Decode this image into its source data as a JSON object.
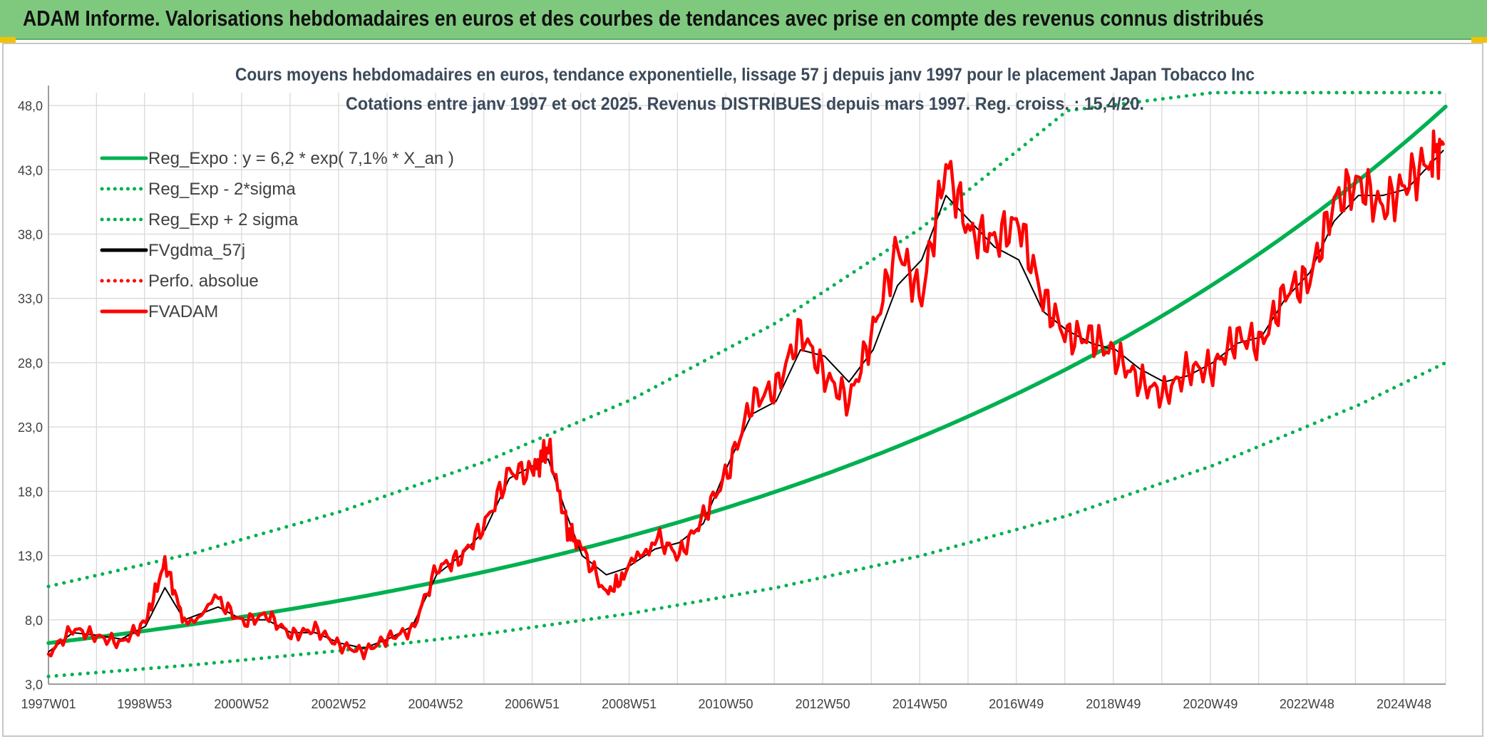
{
  "header": {
    "title": "ADAM Informe. Valorisations hebdomadaires en euros et des courbes de tendances avec prise en compte des revenus connus distribués"
  },
  "chart_data": {
    "type": "line",
    "title": "Cours moyens hebdomadaires en euros, tendance exponentielle, lissage 57 j depuis janv 1997 pour le placement Japan Tobacco Inc",
    "subtitle": "Cotations entre janv 1997 et oct 2025. Revenus DISTRIBUES depuis mars 1997. Reg. croiss. : 15,4/20.",
    "xlabel": "",
    "ylabel": "",
    "xlim": [
      1997.0,
      2025.8
    ],
    "ylim": [
      3.0,
      49.0
    ],
    "grid": true,
    "legend_position": "top-left",
    "x_ticks": [
      {
        "x": 1997.0,
        "label": "1997W01"
      },
      {
        "x": 1998.98,
        "label": "1998W53"
      },
      {
        "x": 2000.98,
        "label": "2000W52"
      },
      {
        "x": 2002.98,
        "label": "2002W52"
      },
      {
        "x": 2004.98,
        "label": "2004W52"
      },
      {
        "x": 2006.97,
        "label": "2006W51"
      },
      {
        "x": 2008.97,
        "label": "2008W51"
      },
      {
        "x": 2010.96,
        "label": "2010W50"
      },
      {
        "x": 2012.96,
        "label": "2012W50"
      },
      {
        "x": 2014.96,
        "label": "2014W50"
      },
      {
        "x": 2016.95,
        "label": "2016W49"
      },
      {
        "x": 2018.95,
        "label": "2018W49"
      },
      {
        "x": 2020.95,
        "label": "2020W49"
      },
      {
        "x": 2022.94,
        "label": "2022W48"
      },
      {
        "x": 2024.94,
        "label": "2024W48"
      }
    ],
    "y_ticks": [
      3.0,
      8.0,
      13.0,
      18.0,
      23.0,
      28.0,
      33.0,
      38.0,
      43.0,
      48.0
    ],
    "y_tick_labels": [
      "3,0",
      "8,0",
      "13,0",
      "18,0",
      "23,0",
      "28,0",
      "33,0",
      "38,0",
      "43,0",
      "48,0"
    ],
    "colors": {
      "regression": "#00b050",
      "smoothed": "#000000",
      "price": "#ff0000",
      "grid": "#d9d9d9"
    },
    "series": [
      {
        "name": "Reg_Expo : y = 6,2 * exp( 7,1% *  X_an )",
        "style": "solid-thick",
        "color": "#00b050",
        "model": {
          "a": 6.2,
          "rate": 0.071,
          "x0": 1997.0
        },
        "x": [
          1997,
          2000,
          2003,
          2006,
          2009,
          2012,
          2015,
          2018,
          2021,
          2024,
          2025.8
        ],
        "values": [
          6.2,
          7.7,
          9.5,
          11.8,
          14.6,
          18.0,
          22.3,
          27.6,
          34.2,
          42.3,
          48.0
        ]
      },
      {
        "name": "Reg_Exp - 2*sigma",
        "style": "dotted",
        "color": "#00b050",
        "x": [
          1997,
          2000,
          2003,
          2006,
          2009,
          2012,
          2015,
          2018,
          2021,
          2024,
          2025.8
        ],
        "values": [
          3.6,
          4.5,
          5.6,
          6.9,
          8.5,
          10.5,
          13.0,
          16.1,
          20.0,
          24.7,
          28.0
        ]
      },
      {
        "name": "Reg_Exp + 2 sigma",
        "style": "dotted",
        "color": "#00b050",
        "x": [
          1997,
          2000,
          2003,
          2006,
          2009,
          2012,
          2015,
          2018,
          2021,
          2024,
          2025.8
        ],
        "values": [
          10.6,
          13.2,
          16.4,
          20.3,
          25.1,
          31.1,
          38.5,
          47.6,
          49.0,
          49.0,
          49.0
        ]
      },
      {
        "name": "FVgdma_57j",
        "style": "solid",
        "color": "#000000",
        "x": [
          1997.0,
          1997.5,
          1998.0,
          1998.5,
          1999.0,
          1999.4,
          1999.8,
          2000.5,
          2001.0,
          2001.5,
          2002.0,
          2002.5,
          2003.0,
          2003.5,
          2004.0,
          2004.5,
          2005.0,
          2005.5,
          2006.0,
          2006.5,
          2007.0,
          2007.3,
          2007.7,
          2008.0,
          2008.5,
          2008.9,
          2009.5,
          2010.0,
          2010.5,
          2011.0,
          2011.5,
          2012.0,
          2012.5,
          2013.0,
          2013.5,
          2014.0,
          2014.5,
          2015.0,
          2015.5,
          2016.0,
          2016.5,
          2017.0,
          2017.5,
          2018.0,
          2018.5,
          2019.0,
          2019.5,
          2020.0,
          2020.5,
          2021.0,
          2021.5,
          2022.0,
          2022.5,
          2023.0,
          2023.5,
          2024.0,
          2024.5,
          2025.0,
          2025.5,
          2025.75
        ],
        "values": [
          5.5,
          7.0,
          6.8,
          6.5,
          7.5,
          10.5,
          8.0,
          9.0,
          8.0,
          8.0,
          7.0,
          7.0,
          6.2,
          5.8,
          6.5,
          7.5,
          11.5,
          13.0,
          15.0,
          19.0,
          20.0,
          20.5,
          16.0,
          13.0,
          11.5,
          12.0,
          13.5,
          14.0,
          15.5,
          20.0,
          24.0,
          25.0,
          29.0,
          28.5,
          26.5,
          29.0,
          34.0,
          36.0,
          41.0,
          39.0,
          37.0,
          36.0,
          32.0,
          30.5,
          29.5,
          29.0,
          27.5,
          26.5,
          27.0,
          28.0,
          29.5,
          30.0,
          33.0,
          35.0,
          39.0,
          41.0,
          41.0,
          41.5,
          43.5,
          44.5
        ]
      },
      {
        "name": "Perfo. absolue",
        "style": "dotted",
        "color": "#ff0000",
        "x": [],
        "values": []
      },
      {
        "name": "FVADAM",
        "style": "solid-thick",
        "color": "#ff0000",
        "x": [
          1997.0,
          1997.5,
          1998.0,
          1998.5,
          1999.0,
          1999.4,
          1999.8,
          2000.5,
          2001.0,
          2001.5,
          2002.0,
          2002.5,
          2003.0,
          2003.5,
          2004.0,
          2004.5,
          2005.0,
          2005.5,
          2006.0,
          2006.5,
          2007.0,
          2007.3,
          2007.7,
          2008.0,
          2008.5,
          2008.9,
          2009.5,
          2010.0,
          2010.5,
          2011.0,
          2011.5,
          2012.0,
          2012.5,
          2013.0,
          2013.5,
          2014.0,
          2014.5,
          2015.0,
          2015.5,
          2016.0,
          2016.5,
          2017.0,
          2017.5,
          2018.0,
          2018.5,
          2019.0,
          2019.5,
          2020.0,
          2020.5,
          2021.0,
          2021.5,
          2022.0,
          2022.5,
          2023.0,
          2023.5,
          2024.0,
          2024.5,
          2025.0,
          2025.5,
          2025.75
        ],
        "values": [
          5.3,
          7.3,
          6.7,
          6.2,
          7.8,
          12.5,
          7.8,
          9.5,
          7.8,
          8.4,
          6.8,
          7.3,
          6.0,
          5.5,
          6.6,
          7.2,
          12.0,
          12.8,
          15.5,
          19.5,
          19.5,
          21.5,
          15.0,
          13.5,
          10.0,
          11.5,
          14.5,
          13.0,
          16.0,
          19.5,
          25.0,
          26.0,
          30.5,
          27.0,
          25.0,
          30.5,
          37.0,
          33.0,
          43.5,
          38.0,
          37.5,
          39.0,
          33.0,
          30.0,
          30.0,
          28.5,
          26.5,
          25.5,
          27.5,
          27.5,
          30.0,
          29.5,
          33.5,
          34.5,
          40.5,
          42.0,
          40.0,
          42.0,
          44.0,
          45.0
        ]
      }
    ]
  }
}
